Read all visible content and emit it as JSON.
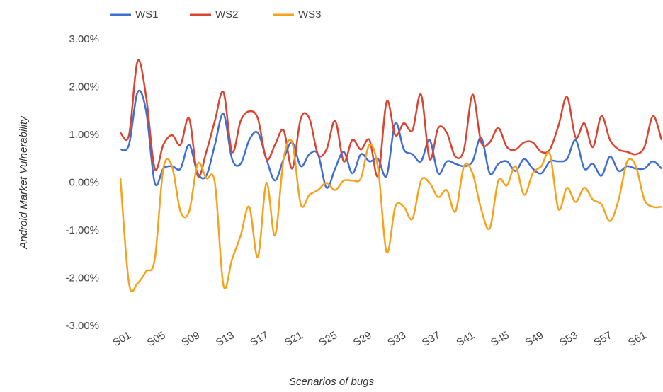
{
  "chart_data": {
    "type": "line",
    "x_label": "Scenarios of bugs",
    "y_label": "Android Market Vulnerability",
    "categories": [
      "S01",
      null,
      null,
      null,
      "S05",
      null,
      null,
      null,
      "S09",
      null,
      null,
      null,
      "S13",
      null,
      null,
      null,
      "S17",
      null,
      null,
      null,
      "S21",
      null,
      null,
      null,
      "S25",
      null,
      null,
      null,
      "S29",
      null,
      null,
      null,
      "S33",
      null,
      null,
      null,
      "S37",
      null,
      null,
      null,
      "S41",
      null,
      null,
      null,
      "S45",
      null,
      null,
      null,
      "S49",
      null,
      null,
      null,
      "S53",
      null,
      null,
      null,
      "S57",
      null,
      null,
      null,
      "S61",
      null,
      null,
      null
    ],
    "series": [
      {
        "name": "WS1",
        "color": "#3f6fd4",
        "values": [
          0.7,
          0.8,
          1.9,
          1.5,
          0.0,
          0.3,
          0.35,
          0.3,
          0.8,
          0.2,
          0.15,
          0.8,
          1.45,
          0.5,
          0.4,
          0.9,
          1.05,
          0.5,
          0.05,
          0.5,
          0.85,
          0.35,
          0.6,
          0.6,
          -0.1,
          0.3,
          0.65,
          0.2,
          0.6,
          0.45,
          0.5,
          0.15,
          1.25,
          0.7,
          0.6,
          0.45,
          0.9,
          0.2,
          0.45,
          0.4,
          0.35,
          0.45,
          0.95,
          0.2,
          0.4,
          0.45,
          0.25,
          0.5,
          0.3,
          0.2,
          0.45,
          0.45,
          0.5,
          0.9,
          0.3,
          0.4,
          0.15,
          0.55,
          0.25,
          0.35,
          0.3,
          0.3,
          0.45,
          0.3
        ]
      },
      {
        "name": "WS2",
        "color": "#db4430",
        "values": [
          1.05,
          1.0,
          2.55,
          1.8,
          0.3,
          0.8,
          1.0,
          0.8,
          1.35,
          0.15,
          0.65,
          1.3,
          1.9,
          0.65,
          1.3,
          1.5,
          1.35,
          0.5,
          0.8,
          1.1,
          0.3,
          1.35,
          1.35,
          0.6,
          0.7,
          1.3,
          0.45,
          0.9,
          0.7,
          0.9,
          0.15,
          1.7,
          1.0,
          1.25,
          1.1,
          1.85,
          0.5,
          1.15,
          1.05,
          0.55,
          0.7,
          1.85,
          0.85,
          0.85,
          1.15,
          0.75,
          0.7,
          0.85,
          0.85,
          0.65,
          0.7,
          1.2,
          1.8,
          0.95,
          1.25,
          0.75,
          1.4,
          0.9,
          0.7,
          0.65,
          0.6,
          0.75,
          1.4,
          0.9
        ]
      },
      {
        "name": "WS3",
        "color": "#f7a21b",
        "values": [
          0.1,
          -2.1,
          -2.1,
          -1.85,
          -1.6,
          0.3,
          0.35,
          -0.6,
          -0.6,
          0.4,
          0.1,
          0.0,
          -2.15,
          -1.6,
          -1.1,
          -0.5,
          -1.55,
          0.0,
          -1.1,
          0.5,
          0.85,
          -0.45,
          -0.25,
          -0.15,
          0.0,
          -0.15,
          0.05,
          0.05,
          0.1,
          0.8,
          0.3,
          -1.45,
          -0.5,
          -0.5,
          -0.75,
          0.05,
          0.0,
          -0.3,
          -0.15,
          -0.6,
          0.35,
          0.2,
          -0.55,
          -0.95,
          0.05,
          -0.05,
          0.35,
          -0.25,
          0.2,
          0.35,
          0.6,
          -0.55,
          -0.1,
          -0.4,
          -0.1,
          -0.35,
          -0.45,
          -0.8,
          -0.35,
          0.45,
          0.35,
          -0.35,
          -0.5,
          -0.5
        ]
      }
    ],
    "ylim": [
      -3,
      3
    ],
    "yticks": [
      {
        "value": -3,
        "label": "-3.00%"
      },
      {
        "value": -2,
        "label": "-2.00%"
      },
      {
        "value": -1,
        "label": "-1.00%"
      },
      {
        "value": 0,
        "label": "0.00%"
      },
      {
        "value": 1,
        "label": "1.00%"
      },
      {
        "value": 2,
        "label": "2.00%"
      },
      {
        "value": 3,
        "label": "3.00%"
      }
    ],
    "grid": false,
    "legend": "top"
  }
}
